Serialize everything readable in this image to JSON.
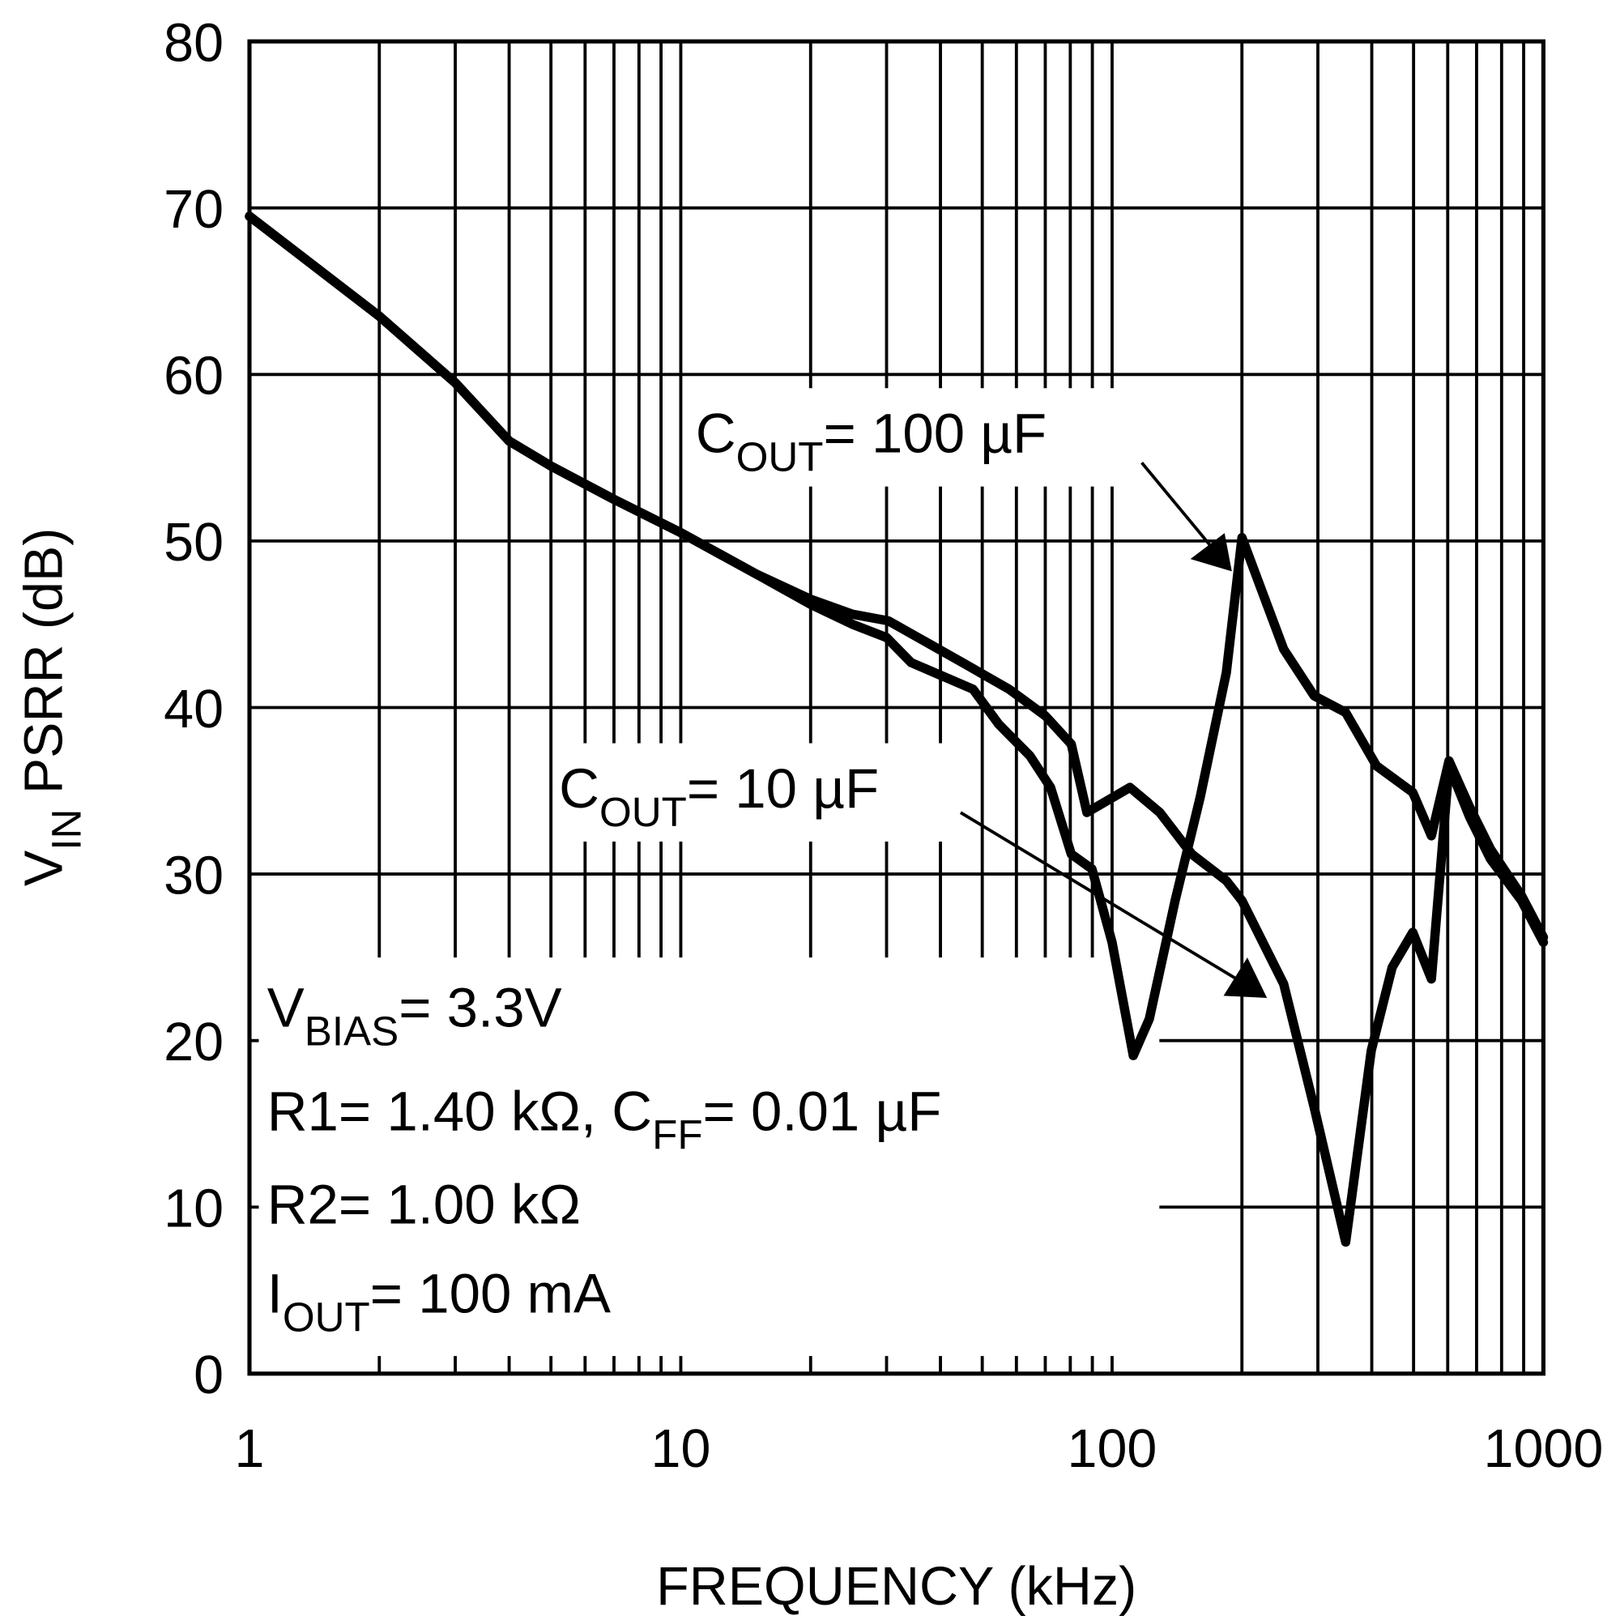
{
  "chart_data": {
    "type": "line",
    "xlabel": "FREQUENCY (kHz)",
    "ylabel": {
      "main": "V",
      "sub": "IN",
      "rest": " PSRR (dB)"
    },
    "xscale": "log",
    "xlim": [
      1,
      1000
    ],
    "ylim": [
      0,
      80
    ],
    "xticks": [
      1,
      10,
      100,
      1000
    ],
    "xtick_labels": [
      "1",
      "10",
      "100",
      "1000"
    ],
    "yticks": [
      0,
      10,
      20,
      30,
      40,
      50,
      60,
      70,
      80
    ],
    "ytick_labels": [
      "0",
      "10",
      "20",
      "30",
      "40",
      "50",
      "60",
      "70",
      "80"
    ],
    "grid": true,
    "series": [
      {
        "name": "COUT= 10 µF",
        "x": [
          1,
          2,
          3,
          4,
          5,
          7,
          10,
          15,
          20,
          25,
          30.3,
          45,
          57.7,
          70,
          80.4,
          87.4,
          110,
          129,
          153,
          184,
          200,
          250,
          294,
          348,
          399,
          446,
          498,
          550,
          604,
          675,
          754,
          890,
          1000
        ],
        "y": [
          69.5,
          63.5,
          59.5,
          56,
          54.5,
          52.5,
          50.5,
          48,
          46.5,
          45.6,
          45.2,
          42.7,
          41.1,
          39.5,
          37.8,
          33.7,
          35.2,
          33.7,
          31.2,
          29.6,
          28.4,
          23.4,
          16,
          7.9,
          19.4,
          24.4,
          26.5,
          23.7,
          36.5,
          33.4,
          30.9,
          28.4,
          25.9
        ]
      },
      {
        "name": "COUT= 100 µF",
        "x": [
          1,
          2,
          3,
          4,
          5,
          7,
          10,
          15,
          20,
          25,
          30,
          34.2,
          47.6,
          54.6,
          64.5,
          72,
          80.4,
          89.8,
          100,
          112,
          122,
          140,
          160,
          184,
          200,
          250,
          294,
          348,
          410,
          498,
          550,
          604,
          675,
          754,
          890,
          1000
        ],
        "y": [
          69.5,
          63.5,
          59.5,
          56,
          54.5,
          52.5,
          50.5,
          48,
          46.2,
          45,
          44.2,
          42.7,
          41.1,
          39,
          37.1,
          35.2,
          31.2,
          30.3,
          25.9,
          19.1,
          21.3,
          28.4,
          34.6,
          42.1,
          50.2,
          43.5,
          40.7,
          39.7,
          36.5,
          34.9,
          32.3,
          36.8,
          34,
          31.5,
          28.7,
          26.2
        ]
      }
    ],
    "annotations": {
      "cout100": {
        "main": "C",
        "sub": "OUT",
        "rest": "= 100 µF"
      },
      "cout10": {
        "main": "C",
        "sub": "OUT",
        "rest": "= 10 µF"
      },
      "conditions": {
        "vbias": {
          "main": "V",
          "sub": "BIAS",
          "rest": "= 3.3V"
        },
        "r1": {
          "main": "R1= 1.40 kΩ, C",
          "sub": "FF",
          "rest": "= 0.01 µF"
        },
        "r2": "R2= 1.00 kΩ",
        "iout": {
          "main": "I",
          "sub": "OUT",
          "rest": "= 100 mA"
        }
      }
    }
  }
}
